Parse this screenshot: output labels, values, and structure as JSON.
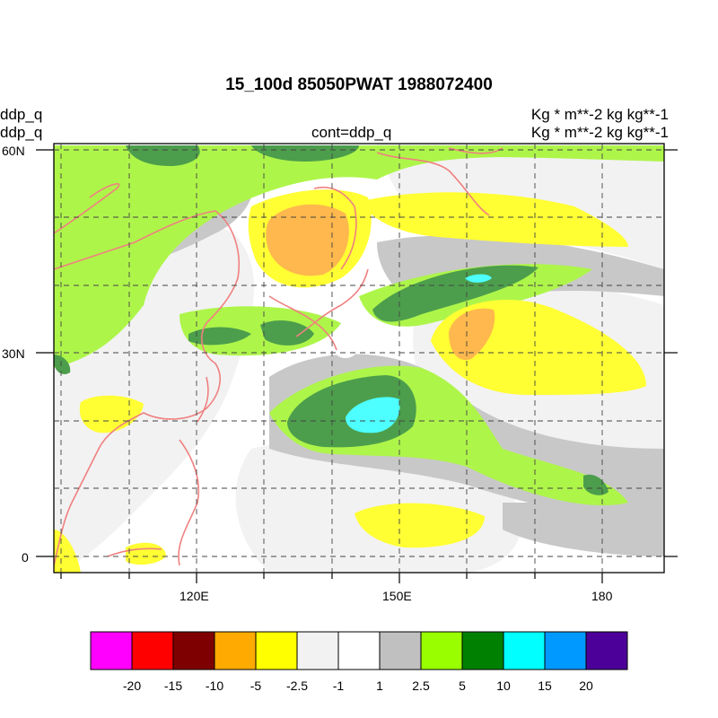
{
  "title": "15_100d 85050PWAT  1988072400",
  "left_labels": [
    "ddp_q",
    "ddp_q"
  ],
  "center_label": "cont=ddp_q",
  "right_labels": [
    "Kg  * m**-2 kg kg**-1",
    "Kg  * m**-2 kg kg**-1"
  ],
  "y_ticks": [
    "60N",
    "30N",
    "0"
  ],
  "x_ticks": [
    "120E",
    "150E",
    "180"
  ],
  "colorbar": {
    "colors": [
      "#ff00ff",
      "#ff0000",
      "#7f0000",
      "#ffaa00",
      "#ffff00",
      "#f2f2f2",
      "#ffffff",
      "#c0c0c0",
      "#99ff00",
      "#008000",
      "#00ffff",
      "#0099ff",
      "#4c0099"
    ],
    "labels": [
      "-20",
      "-15",
      "-10",
      "-5",
      "-2.5",
      "-1",
      "1",
      "2.5",
      "5",
      "10",
      "15",
      "20"
    ]
  },
  "palette": {
    "light_gray": "#f2f2f2",
    "gray": "#c8c8c8",
    "light_green": "#aef54a",
    "green": "#4c9e4c",
    "cyan": "#4dffff",
    "yellow": "#ffff33",
    "orange": "#ffb84d",
    "coast": "#f08080"
  }
}
